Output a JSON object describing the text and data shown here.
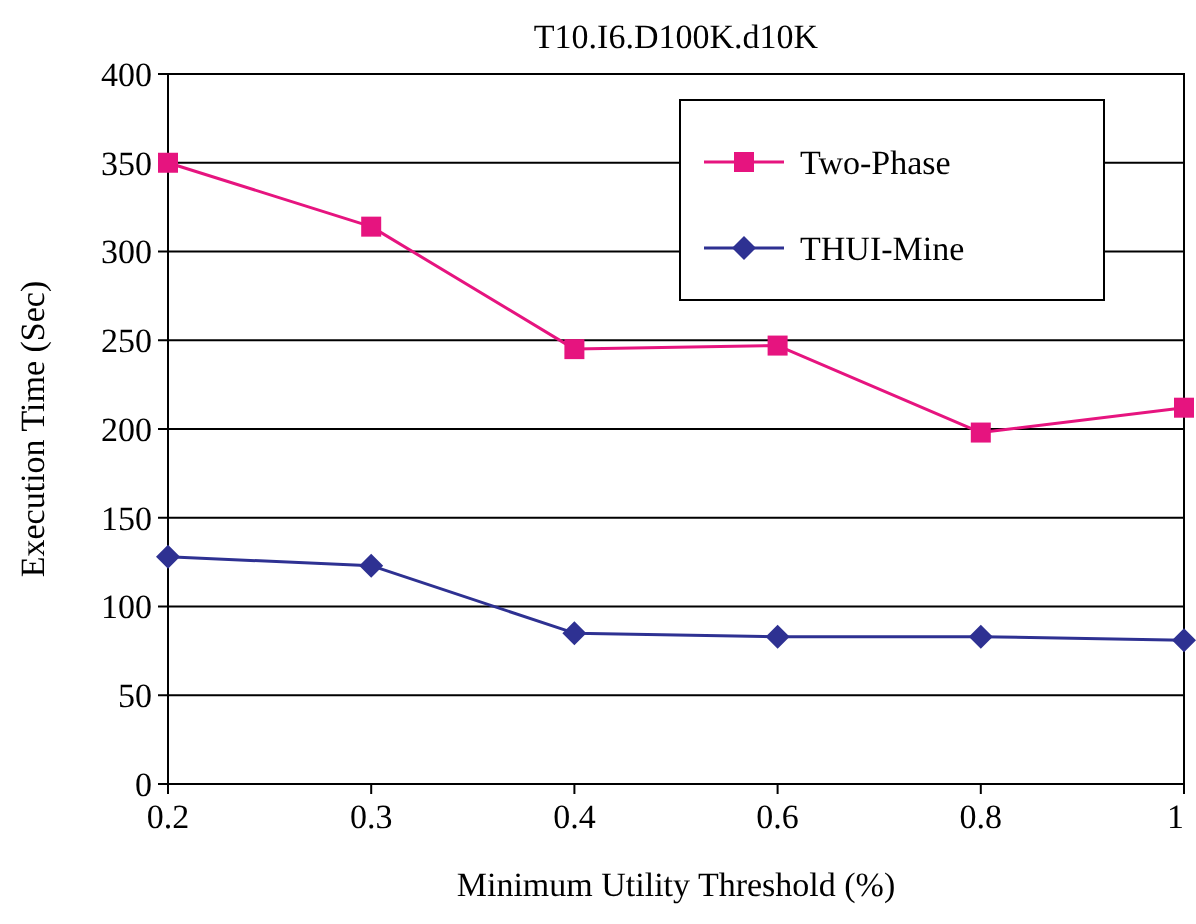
{
  "chart_data": {
    "type": "line",
    "title": "T10.I6.D100K.d10K",
    "xlabel": "Minimum Utility Threshold (%)",
    "ylabel": "Execution Time (Sec)",
    "categories": [
      "0.2",
      "0.3",
      "0.4",
      "0.6",
      "0.8",
      "1"
    ],
    "series": [
      {
        "name": "Two-Phase",
        "color": "#e6147f",
        "marker": "square",
        "values": [
          350,
          314,
          245,
          247,
          198,
          212
        ]
      },
      {
        "name": "THUI-Mine",
        "color": "#2e3192",
        "marker": "diamond",
        "values": [
          128,
          123,
          85,
          83,
          83,
          81
        ]
      }
    ],
    "ylim": [
      0,
      400
    ],
    "yticks": [
      0,
      50,
      100,
      150,
      200,
      250,
      300,
      350,
      400
    ],
    "grid": "y",
    "legend": "top right"
  }
}
